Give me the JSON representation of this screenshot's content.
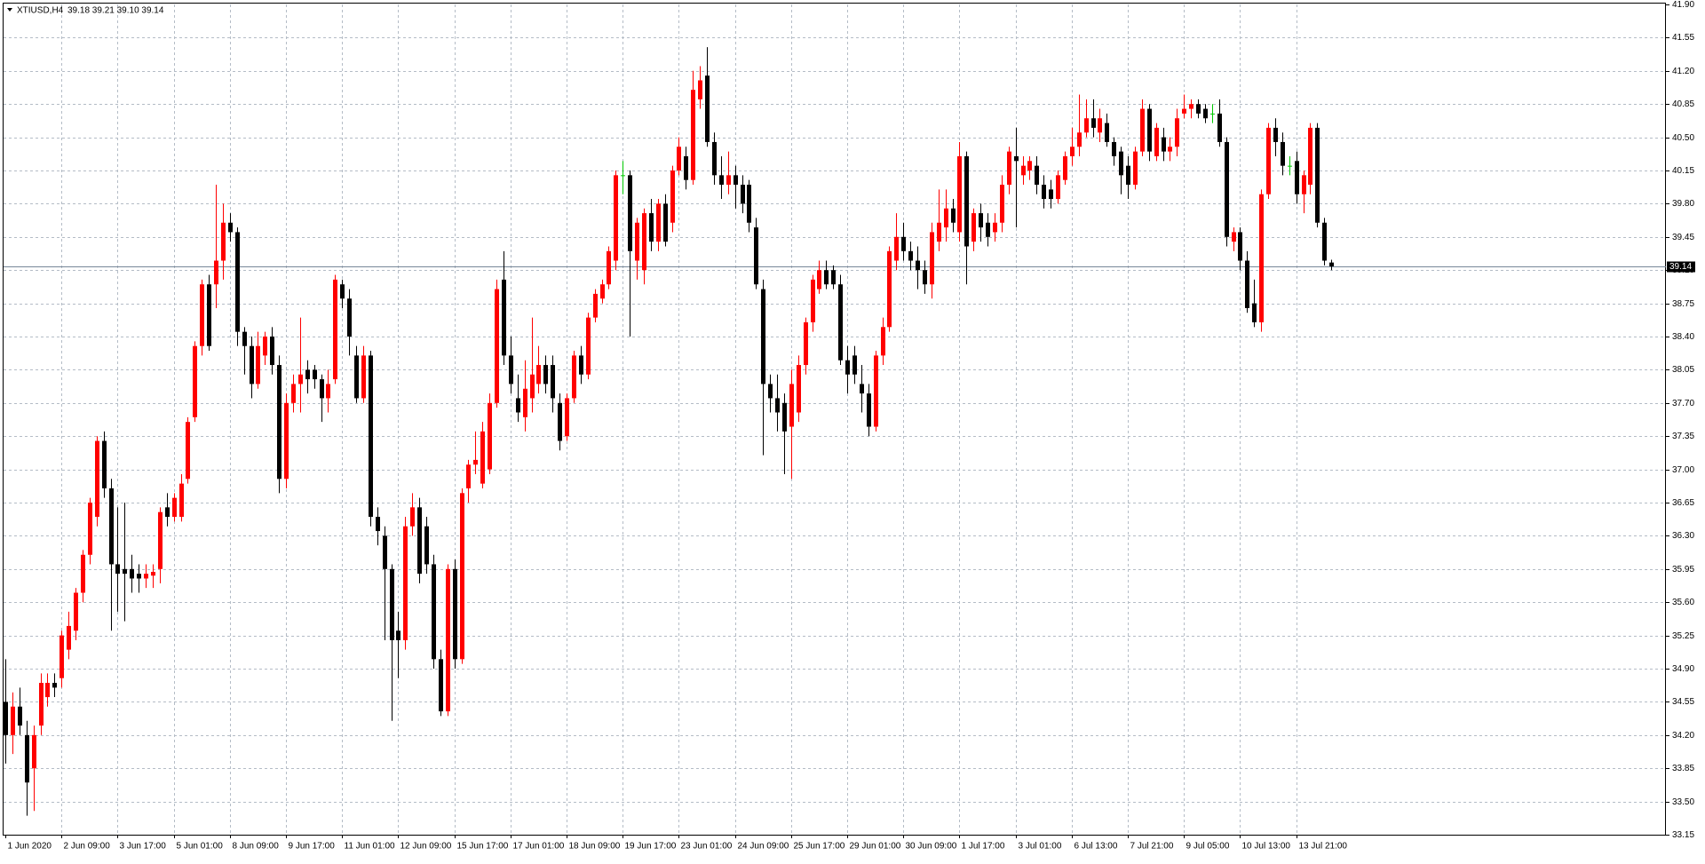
{
  "chart_data": {
    "type": "candlestick",
    "title": "XTIUSD,H4",
    "subtitle": "39.18 39.21 39.10 39.14",
    "up_color": "#ff0000",
    "down_color": "#000000",
    "doji_color": "#00c800",
    "grid": true,
    "last_price": 39.14,
    "ylim": [
      33.15,
      41.9
    ],
    "yticks": [
      {
        "value": 41.9,
        "label": "41.90"
      },
      41.55,
      {
        "value": 41.2,
        "label": "41.20"
      },
      40.85,
      {
        "value": 40.5,
        "label": "40.50"
      },
      40.15,
      {
        "value": 39.8,
        "label": "39.80"
      },
      39.45,
      {
        "value": 39.1,
        "label": "39.10"
      },
      38.75,
      {
        "value": 38.4,
        "label": "38.40"
      },
      38.05,
      {
        "value": 37.7,
        "label": "37.70"
      },
      37.35,
      {
        "value": 37,
        "label": "37.00"
      },
      36.65,
      {
        "value": 36.3,
        "label": "36.30"
      },
      35.95,
      {
        "value": 35.6,
        "label": "35.60"
      },
      35.25,
      {
        "value": 34.9,
        "label": "34.90"
      },
      34.55,
      {
        "value": 34.2,
        "label": "34.20"
      },
      33.85,
      {
        "value": 33.5,
        "label": "33.50"
      },
      33.15
    ],
    "xticks": [
      {
        "value": 0,
        "label": "1 Jun 2020"
      },
      {
        "value": 8,
        "label": "2 Jun 09:00"
      },
      {
        "value": 16,
        "label": "3 Jun 17:00"
      },
      {
        "value": 24,
        "label": "5 Jun 01:00"
      },
      {
        "value": 32,
        "label": "8 Jun 09:00"
      },
      {
        "value": 40,
        "label": "9 Jun 17:00"
      },
      {
        "value": 48,
        "label": "11 Jun 01:00"
      },
      {
        "value": 56,
        "label": "12 Jun 09:00"
      },
      {
        "value": 64,
        "label": "15 Jun 17:00"
      },
      {
        "value": 72,
        "label": "17 Jun 01:00"
      },
      {
        "value": 80,
        "label": "18 Jun 09:00"
      },
      {
        "value": 88,
        "label": "19 Jun 17:00"
      },
      {
        "value": 96,
        "label": "23 Jun 01:00"
      },
      {
        "value": 104,
        "label": "24 Jun 09:00"
      },
      {
        "value": 112,
        "label": "25 Jun 17:00"
      },
      {
        "value": 120,
        "label": "29 Jun 01:00"
      },
      {
        "value": 128,
        "label": "30 Jun 09:00"
      },
      {
        "value": 136,
        "label": "1 Jul 17:00"
      },
      {
        "value": 144,
        "label": "3 Jul 01:00"
      },
      {
        "value": 152,
        "label": "6 Jul 13:00"
      },
      {
        "value": 160,
        "label": "7 Jul 21:00"
      },
      {
        "value": 168,
        "label": "9 Jul 05:00"
      },
      {
        "value": 176,
        "label": "10 Jul 13:00"
      },
      {
        "value": 184,
        "label": "13 Jul 21:00"
      }
    ],
    "candles": [
      [
        34.55,
        35.0,
        33.9,
        34.2
      ],
      [
        34.2,
        34.65,
        34.0,
        34.5
      ],
      [
        34.5,
        34.7,
        34.2,
        34.3
      ],
      [
        34.2,
        34.35,
        33.35,
        33.7
      ],
      [
        33.85,
        34.3,
        33.4,
        34.2
      ],
      [
        34.3,
        34.85,
        34.2,
        34.75
      ],
      [
        34.6,
        34.85,
        34.5,
        34.75
      ],
      [
        34.75,
        34.85,
        34.6,
        34.7
      ],
      [
        34.8,
        35.3,
        34.7,
        35.25
      ],
      [
        35.1,
        35.5,
        35.0,
        35.35
      ],
      [
        35.3,
        35.75,
        35.2,
        35.7
      ],
      [
        35.7,
        36.15,
        35.6,
        36.1
      ],
      [
        36.1,
        36.7,
        36.0,
        36.65
      ],
      [
        36.5,
        37.35,
        36.4,
        37.3
      ],
      [
        37.3,
        37.4,
        36.7,
        36.8
      ],
      [
        36.8,
        36.9,
        35.3,
        36.0
      ],
      [
        36.0,
        36.6,
        35.5,
        35.9
      ],
      [
        35.95,
        36.65,
        35.4,
        35.9
      ],
      [
        35.95,
        36.1,
        35.7,
        35.85
      ],
      [
        35.9,
        36.0,
        35.7,
        35.85
      ],
      [
        35.85,
        36.0,
        35.75,
        35.9
      ],
      [
        35.88,
        36.0,
        35.75,
        35.92
      ],
      [
        35.95,
        36.6,
        35.8,
        36.55
      ],
      [
        36.6,
        36.75,
        36.4,
        36.5
      ],
      [
        36.5,
        36.75,
        36.45,
        36.7
      ],
      [
        36.5,
        36.95,
        36.45,
        36.85
      ],
      [
        36.9,
        37.55,
        36.85,
        37.5
      ],
      [
        37.55,
        38.35,
        37.5,
        38.3
      ],
      [
        38.3,
        39.0,
        38.2,
        38.95
      ],
      [
        38.95,
        39.05,
        38.25,
        38.3
      ],
      [
        38.95,
        40.0,
        38.7,
        39.2
      ],
      [
        39.2,
        39.8,
        39.0,
        39.6
      ],
      [
        39.6,
        39.7,
        39.4,
        39.5
      ],
      [
        39.5,
        39.55,
        38.3,
        38.45
      ],
      [
        38.45,
        38.5,
        38.0,
        38.3
      ],
      [
        38.3,
        38.4,
        37.75,
        37.9
      ],
      [
        37.9,
        38.45,
        37.85,
        38.3
      ],
      [
        38.2,
        38.45,
        38.1,
        38.4
      ],
      [
        38.4,
        38.5,
        38.0,
        38.1
      ],
      [
        38.1,
        38.2,
        36.75,
        36.9
      ],
      [
        36.9,
        37.8,
        36.8,
        37.7
      ],
      [
        37.7,
        38.0,
        37.6,
        37.9
      ],
      [
        37.9,
        38.6,
        37.6,
        38.0
      ],
      [
        38.05,
        38.15,
        37.8,
        37.95
      ],
      [
        38.05,
        38.1,
        37.85,
        37.95
      ],
      [
        37.95,
        38.0,
        37.5,
        37.75
      ],
      [
        37.75,
        38.05,
        37.6,
        37.9
      ],
      [
        37.95,
        39.05,
        37.9,
        39.0
      ],
      [
        38.95,
        39.0,
        38.7,
        38.8
      ],
      [
        38.8,
        38.9,
        38.2,
        38.4
      ],
      [
        38.2,
        38.3,
        37.7,
        37.75
      ],
      [
        37.75,
        38.3,
        37.7,
        38.2
      ],
      [
        38.2,
        38.25,
        36.4,
        36.5
      ],
      [
        36.5,
        36.6,
        36.2,
        36.35
      ],
      [
        36.3,
        36.4,
        35.2,
        35.95
      ],
      [
        35.95,
        36.0,
        34.35,
        35.2
      ],
      [
        35.3,
        35.5,
        34.8,
        35.2
      ],
      [
        35.2,
        36.5,
        35.1,
        36.4
      ],
      [
        36.4,
        36.75,
        36.3,
        36.6
      ],
      [
        36.6,
        36.7,
        35.8,
        35.9
      ],
      [
        36.4,
        36.5,
        35.9,
        36.0
      ],
      [
        36.0,
        36.1,
        34.9,
        35.0
      ],
      [
        35.0,
        35.1,
        34.4,
        34.45
      ],
      [
        34.45,
        36.0,
        34.4,
        35.95
      ],
      [
        35.95,
        36.05,
        34.9,
        35.0
      ],
      [
        35.0,
        36.8,
        34.95,
        36.75
      ],
      [
        36.8,
        37.1,
        36.65,
        37.05
      ],
      [
        37.05,
        37.4,
        36.95,
        37.1
      ],
      [
        36.85,
        37.5,
        36.8,
        37.4
      ],
      [
        37.0,
        37.8,
        36.95,
        37.7
      ],
      [
        37.7,
        39.0,
        37.65,
        38.9
      ],
      [
        39.0,
        39.3,
        38.1,
        38.2
      ],
      [
        38.2,
        38.4,
        37.8,
        37.9
      ],
      [
        37.75,
        38.0,
        37.5,
        37.6
      ],
      [
        37.55,
        38.15,
        37.4,
        37.85
      ],
      [
        37.75,
        38.6,
        37.6,
        38.0
      ],
      [
        37.9,
        38.3,
        37.8,
        38.1
      ],
      [
        38.1,
        38.2,
        37.8,
        37.9
      ],
      [
        38.1,
        38.2,
        37.6,
        37.75
      ],
      [
        37.7,
        37.8,
        37.2,
        37.3
      ],
      [
        37.35,
        37.8,
        37.3,
        37.75
      ],
      [
        37.75,
        38.25,
        37.7,
        38.2
      ],
      [
        38.2,
        38.3,
        37.9,
        38.0
      ],
      [
        38.0,
        38.65,
        37.95,
        38.6
      ],
      [
        38.6,
        38.9,
        38.55,
        38.85
      ],
      [
        38.8,
        39.0,
        38.75,
        38.95
      ],
      [
        38.95,
        39.35,
        38.9,
        39.3
      ],
      [
        39.2,
        40.15,
        39.1,
        40.1
      ],
      [
        40.1,
        40.25,
        39.9,
        40.1
      ],
      [
        40.1,
        40.15,
        38.4,
        39.3
      ],
      [
        39.2,
        39.65,
        39.0,
        39.6
      ],
      [
        39.1,
        39.75,
        38.95,
        39.7
      ],
      [
        39.7,
        39.85,
        39.3,
        39.4
      ],
      [
        39.4,
        39.85,
        39.3,
        39.8
      ],
      [
        39.8,
        39.9,
        39.35,
        39.4
      ],
      [
        39.6,
        40.2,
        39.5,
        40.15
      ],
      [
        40.15,
        40.5,
        40.1,
        40.4
      ],
      [
        40.3,
        40.4,
        39.95,
        40.05
      ],
      [
        40.05,
        41.2,
        40.0,
        41.0
      ],
      [
        40.9,
        41.25,
        40.8,
        41.1
      ],
      [
        41.15,
        41.45,
        40.4,
        40.45
      ],
      [
        40.45,
        40.55,
        40.0,
        40.1
      ],
      [
        40.1,
        40.3,
        39.85,
        40.0
      ],
      [
        40.0,
        40.35,
        39.9,
        40.1
      ],
      [
        40.1,
        40.2,
        39.75,
        40.0
      ],
      [
        40.0,
        40.1,
        39.7,
        39.8
      ],
      [
        40.0,
        40.05,
        39.5,
        39.6
      ],
      [
        39.55,
        39.65,
        38.9,
        38.95
      ],
      [
        38.9,
        39.0,
        37.15,
        37.9
      ],
      [
        37.9,
        38.0,
        37.6,
        37.75
      ],
      [
        37.75,
        38.0,
        37.4,
        37.6
      ],
      [
        37.7,
        37.8,
        36.95,
        37.4
      ],
      [
        37.45,
        38.05,
        36.9,
        37.9
      ],
      [
        37.6,
        38.2,
        37.5,
        38.1
      ],
      [
        38.1,
        38.6,
        38.0,
        38.55
      ],
      [
        38.55,
        39.05,
        38.45,
        39.0
      ],
      [
        38.9,
        39.2,
        38.85,
        39.1
      ],
      [
        39.1,
        39.2,
        38.9,
        38.95
      ],
      [
        39.1,
        39.15,
        38.9,
        38.95
      ],
      [
        38.95,
        39.05,
        38.1,
        38.15
      ],
      [
        38.15,
        38.3,
        37.8,
        38.0
      ],
      [
        38.2,
        38.3,
        37.9,
        38.0
      ],
      [
        37.9,
        38.1,
        37.6,
        37.8
      ],
      [
        37.8,
        37.9,
        37.35,
        37.45
      ],
      [
        37.45,
        38.25,
        37.4,
        38.2
      ],
      [
        38.2,
        38.6,
        38.1,
        38.5
      ],
      [
        38.5,
        39.35,
        38.45,
        39.3
      ],
      [
        39.2,
        39.7,
        39.1,
        39.45
      ],
      [
        39.45,
        39.6,
        39.2,
        39.3
      ],
      [
        39.3,
        39.4,
        39.1,
        39.2
      ],
      [
        39.2,
        39.35,
        38.9,
        39.1
      ],
      [
        39.1,
        39.2,
        38.85,
        38.95
      ],
      [
        38.95,
        39.6,
        38.8,
        39.5
      ],
      [
        39.4,
        39.95,
        39.3,
        39.6
      ],
      [
        39.55,
        39.95,
        39.4,
        39.75
      ],
      [
        39.75,
        39.85,
        39.5,
        39.6
      ],
      [
        39.5,
        40.45,
        39.4,
        40.3
      ],
      [
        40.3,
        40.35,
        38.95,
        39.35
      ],
      [
        39.4,
        39.75,
        39.3,
        39.7
      ],
      [
        39.7,
        39.8,
        39.4,
        39.55
      ],
      [
        39.6,
        39.7,
        39.35,
        39.45
      ],
      [
        39.5,
        39.7,
        39.4,
        39.6
      ],
      [
        39.6,
        40.1,
        39.5,
        40.0
      ],
      [
        40.0,
        40.4,
        39.9,
        40.35
      ],
      [
        40.3,
        40.6,
        39.55,
        40.25
      ],
      [
        40.1,
        40.3,
        40.0,
        40.2
      ],
      [
        40.15,
        40.3,
        40.05,
        40.25
      ],
      [
        40.2,
        40.3,
        39.9,
        40.0
      ],
      [
        40.0,
        40.1,
        39.75,
        39.85
      ],
      [
        39.95,
        40.05,
        39.75,
        39.85
      ],
      [
        39.85,
        40.15,
        39.8,
        40.1
      ],
      [
        40.05,
        40.35,
        40.0,
        40.3
      ],
      [
        40.3,
        40.6,
        40.2,
        40.4
      ],
      [
        40.4,
        40.95,
        40.3,
        40.55
      ],
      [
        40.55,
        40.9,
        40.5,
        40.7
      ],
      [
        40.7,
        40.9,
        40.5,
        40.6
      ],
      [
        40.55,
        40.8,
        40.45,
        40.7
      ],
      [
        40.65,
        40.75,
        40.4,
        40.45
      ],
      [
        40.45,
        40.5,
        40.2,
        40.3
      ],
      [
        40.35,
        40.4,
        39.9,
        40.1
      ],
      [
        40.2,
        40.3,
        39.85,
        40.0
      ],
      [
        40.0,
        40.4,
        39.95,
        40.35
      ],
      [
        40.35,
        40.9,
        40.3,
        40.8
      ],
      [
        40.8,
        40.85,
        40.25,
        40.35
      ],
      [
        40.3,
        40.65,
        40.25,
        40.6
      ],
      [
        40.5,
        40.6,
        40.25,
        40.35
      ],
      [
        40.35,
        40.5,
        40.25,
        40.4
      ],
      [
        40.4,
        40.8,
        40.3,
        40.7
      ],
      [
        40.75,
        40.95,
        40.7,
        40.8
      ],
      [
        40.8,
        40.9,
        40.7,
        40.85
      ],
      [
        40.85,
        40.9,
        40.7,
        40.75
      ],
      [
        40.8,
        40.85,
        40.65,
        40.7
      ],
      [
        40.75,
        40.85,
        40.65,
        40.75
      ],
      [
        40.75,
        40.9,
        40.4,
        40.45
      ],
      [
        40.45,
        40.5,
        39.35,
        39.45
      ],
      [
        39.4,
        39.55,
        39.3,
        39.5
      ],
      [
        39.5,
        39.55,
        39.1,
        39.2
      ],
      [
        39.2,
        39.3,
        38.65,
        38.7
      ],
      [
        38.75,
        39.0,
        38.5,
        38.55
      ],
      [
        38.55,
        39.95,
        38.45,
        39.9
      ],
      [
        39.9,
        40.65,
        39.85,
        40.6
      ],
      [
        40.6,
        40.7,
        40.3,
        40.45
      ],
      [
        40.45,
        40.55,
        40.1,
        40.2
      ],
      [
        40.2,
        40.3,
        40.1,
        40.2
      ],
      [
        40.25,
        40.35,
        39.8,
        39.9
      ],
      [
        39.9,
        40.15,
        39.7,
        40.1
      ],
      [
        40.0,
        40.65,
        39.9,
        40.6
      ],
      [
        40.6,
        40.65,
        39.55,
        39.6
      ],
      [
        39.6,
        39.65,
        39.15,
        39.2
      ],
      [
        39.18,
        39.21,
        39.1,
        39.14
      ]
    ]
  }
}
